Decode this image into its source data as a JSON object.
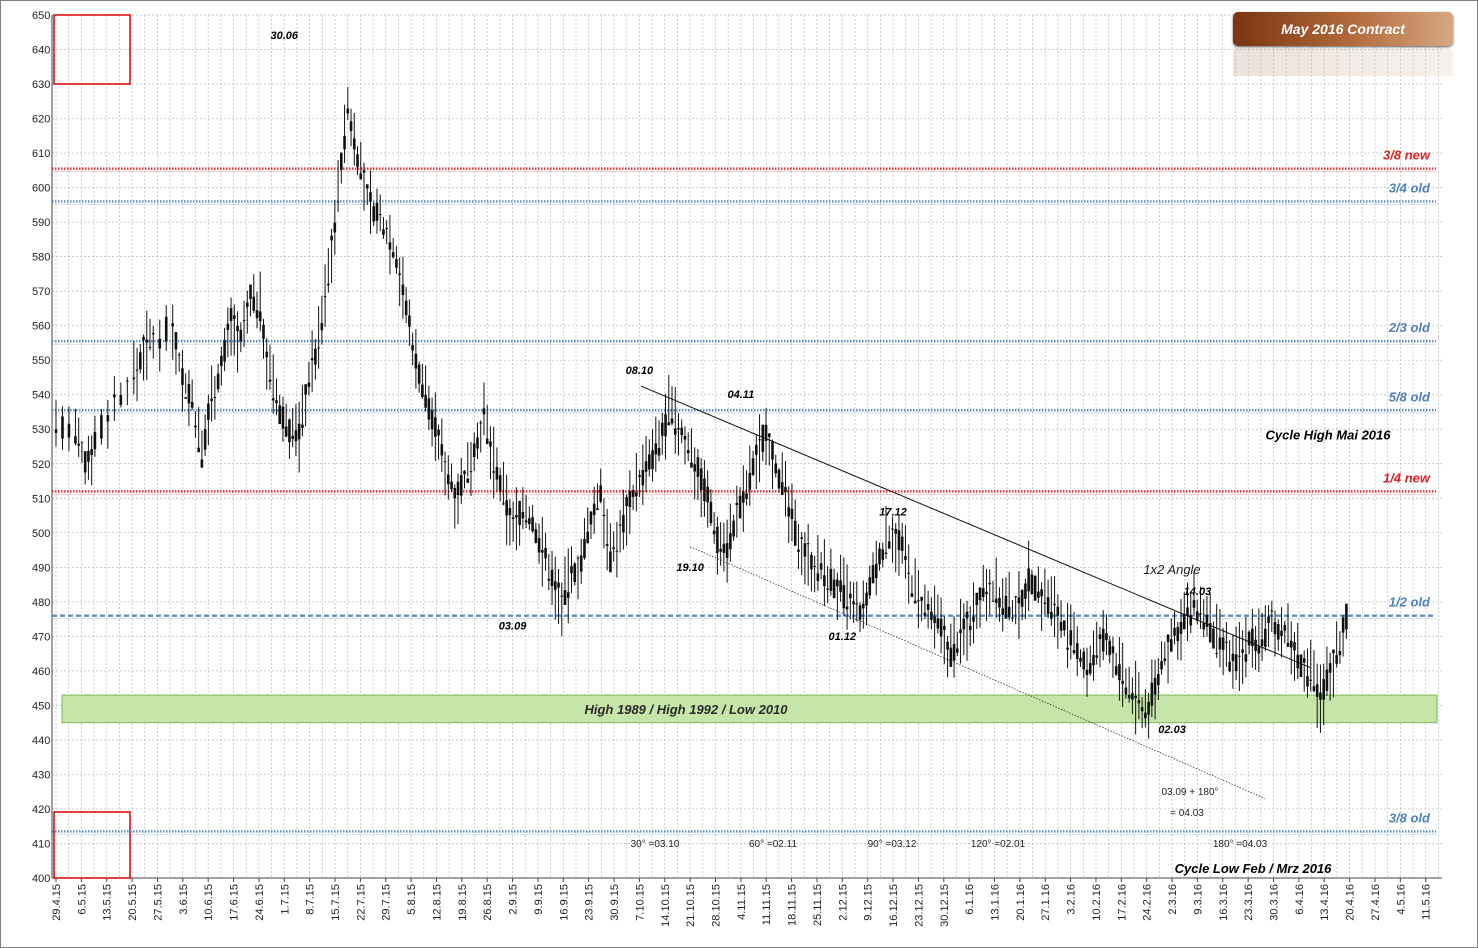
{
  "title": "May 2016 Contract",
  "chart_data": {
    "type": "candlestick",
    "ylim": [
      400,
      650
    ],
    "y_ticks": [
      400,
      410,
      420,
      430,
      440,
      450,
      460,
      470,
      480,
      490,
      500,
      510,
      520,
      530,
      540,
      550,
      560,
      570,
      580,
      590,
      600,
      610,
      620,
      630,
      640,
      650
    ],
    "x_ticks": [
      "29.4.15",
      "6.5.15",
      "13.5.15",
      "20.5.15",
      "27.5.15",
      "3.6.15",
      "10.6.15",
      "17.6.15",
      "24.6.15",
      "1.7.15",
      "8.7.15",
      "15.7.15",
      "22.7.15",
      "29.7.15",
      "5.8.15",
      "12.8.15",
      "19.8.15",
      "26.8.15",
      "2.9.15",
      "9.9.15",
      "16.9.15",
      "23.9.15",
      "30.9.15",
      "7.10.15",
      "14.10.15",
      "21.10.15",
      "28.10.15",
      "4.11.15",
      "11.11.15",
      "18.11.15",
      "25.11.15",
      "2.12.15",
      "9.12.15",
      "16.12.15",
      "23.12.15",
      "30.12.15",
      "6.1.16",
      "13.1.16",
      "20.1.16",
      "27.1.16",
      "3.2.16",
      "10.2.16",
      "17.2.16",
      "24.2.16",
      "2.3.16",
      "9.3.16",
      "16.3.16",
      "23.3.16",
      "30.3.16",
      "6.4.16",
      "13.4.16",
      "20.4.16",
      "27.4.16",
      "4.5.16",
      "11.5.16"
    ],
    "trend_close": [
      [
        0,
        532
      ],
      [
        2,
        528
      ],
      [
        3,
        520
      ],
      [
        4,
        527
      ],
      [
        6,
        538
      ],
      [
        8,
        545
      ],
      [
        9,
        553
      ],
      [
        10,
        556
      ],
      [
        12,
        560
      ],
      [
        13,
        545
      ],
      [
        14,
        538
      ],
      [
        15,
        522
      ],
      [
        16,
        540
      ],
      [
        17,
        548
      ],
      [
        18,
        562
      ],
      [
        19,
        555
      ],
      [
        20,
        568
      ],
      [
        21,
        565
      ],
      [
        22,
        545
      ],
      [
        23,
        535
      ],
      [
        24,
        530
      ],
      [
        25,
        528
      ],
      [
        26,
        545
      ],
      [
        27,
        555
      ],
      [
        28,
        575
      ],
      [
        29,
        598
      ],
      [
        30,
        623
      ],
      [
        31,
        610
      ],
      [
        32,
        597
      ],
      [
        33,
        592
      ],
      [
        34,
        588
      ],
      [
        35,
        580
      ],
      [
        36,
        565
      ],
      [
        37,
        550
      ],
      [
        38,
        540
      ],
      [
        39,
        530
      ],
      [
        40,
        520
      ],
      [
        41,
        512
      ],
      [
        42,
        515
      ],
      [
        43,
        525
      ],
      [
        44,
        533
      ],
      [
        45,
        520
      ],
      [
        46,
        510
      ],
      [
        47,
        502
      ],
      [
        48,
        507
      ],
      [
        49,
        503
      ],
      [
        50,
        495
      ],
      [
        51,
        487
      ],
      [
        52,
        480
      ],
      [
        53,
        487
      ],
      [
        54,
        492
      ],
      [
        55,
        503
      ],
      [
        56,
        513
      ],
      [
        57,
        492
      ],
      [
        58,
        500
      ],
      [
        59,
        510
      ],
      [
        60,
        515
      ],
      [
        61,
        520
      ],
      [
        62,
        525
      ],
      [
        63,
        535
      ],
      [
        64,
        530
      ],
      [
        65,
        525
      ],
      [
        66,
        518
      ],
      [
        67,
        510
      ],
      [
        68,
        498
      ],
      [
        69,
        496
      ],
      [
        70,
        505
      ],
      [
        71,
        512
      ],
      [
        72,
        522
      ],
      [
        73,
        530
      ],
      [
        74,
        520
      ],
      [
        75,
        510
      ],
      [
        76,
        500
      ],
      [
        77,
        495
      ],
      [
        78,
        490
      ],
      [
        79,
        488
      ],
      [
        80,
        485
      ],
      [
        81,
        482
      ],
      [
        82,
        478
      ],
      [
        83,
        476
      ],
      [
        84,
        488
      ],
      [
        85,
        495
      ],
      [
        86,
        501
      ],
      [
        87,
        495
      ],
      [
        88,
        485
      ],
      [
        89,
        478
      ],
      [
        90,
        475
      ],
      [
        91,
        472
      ],
      [
        92,
        465
      ],
      [
        93,
        470
      ],
      [
        94,
        475
      ],
      [
        95,
        482
      ],
      [
        96,
        486
      ],
      [
        97,
        480
      ],
      [
        98,
        478
      ],
      [
        99,
        478
      ],
      [
        100,
        487
      ],
      [
        101,
        483
      ],
      [
        102,
        480
      ],
      [
        103,
        477
      ],
      [
        104,
        470
      ],
      [
        105,
        465
      ],
      [
        106,
        461
      ],
      [
        107,
        465
      ],
      [
        108,
        470
      ],
      [
        109,
        462
      ],
      [
        110,
        455
      ],
      [
        111,
        452
      ],
      [
        112,
        448
      ],
      [
        113,
        455
      ],
      [
        114,
        465
      ],
      [
        115,
        470
      ],
      [
        116,
        475
      ],
      [
        117,
        478
      ],
      [
        118,
        476
      ],
      [
        119,
        470
      ],
      [
        120,
        466
      ],
      [
        121,
        462
      ],
      [
        122,
        465
      ],
      [
        123,
        470
      ],
      [
        124,
        468
      ],
      [
        125,
        474
      ],
      [
        126,
        472
      ],
      [
        127,
        468
      ],
      [
        128,
        462
      ],
      [
        129,
        458
      ],
      [
        130,
        452
      ],
      [
        131,
        460
      ],
      [
        132,
        468
      ],
      [
        133,
        480
      ]
    ],
    "levels": [
      {
        "label": "3/8 new",
        "value": 605.5,
        "color": "#e02020",
        "style": "dotted"
      },
      {
        "label": "3/4 old",
        "value": 596,
        "color": "#4f81bd",
        "style": "dotted"
      },
      {
        "label": "2/3 old",
        "value": 555.5,
        "color": "#4f81bd",
        "style": "dotted"
      },
      {
        "label": "5/8 old",
        "value": 535.5,
        "color": "#4f81bd",
        "style": "dotted"
      },
      {
        "label": "1/4 new",
        "value": 512,
        "color": "#e02020",
        "style": "dotted"
      },
      {
        "label": "1/2 old",
        "value": 476,
        "color": "#4f81bd",
        "style": "dashed"
      },
      {
        "label": "3/8 old",
        "value": 413.5,
        "color": "#4f81bd",
        "style": "dotted"
      }
    ],
    "band": {
      "label": "High 1989 / High 1992 / Low 2010",
      "low": 445,
      "high": 453,
      "color": "#c6e5a8"
    },
    "pivot_labels": [
      {
        "text": "30.06",
        "x_index": 9,
        "price": 643
      },
      {
        "text": "03.09",
        "x_index": 18,
        "price": 472
      },
      {
        "text": "08.10",
        "x_index": 23,
        "price": 546
      },
      {
        "text": "04.11",
        "x_index": 27,
        "price": 539
      },
      {
        "text": "19.10",
        "x_index": 25,
        "price": 489
      },
      {
        "text": "01.12",
        "x_index": 31,
        "price": 469
      },
      {
        "text": "17.12",
        "x_index": 33,
        "price": 505
      },
      {
        "text": "14.03",
        "x_index": 45,
        "price": 482
      },
      {
        "text": "02.03",
        "x_index": 44,
        "price": 442
      }
    ],
    "angle_label": "1x2 Angle",
    "cycle_high": "Cycle High Mai 2016",
    "cycle_low": "Cycle Low Feb / Mrz 2016",
    "degree_labels": [
      "30° =03.10",
      "60° =02.11",
      "90° =03.12",
      "120° =02.01",
      "180° =04.03"
    ],
    "projection_label_1": "03.09 + 180°",
    "projection_label_2": "= 04.03"
  }
}
